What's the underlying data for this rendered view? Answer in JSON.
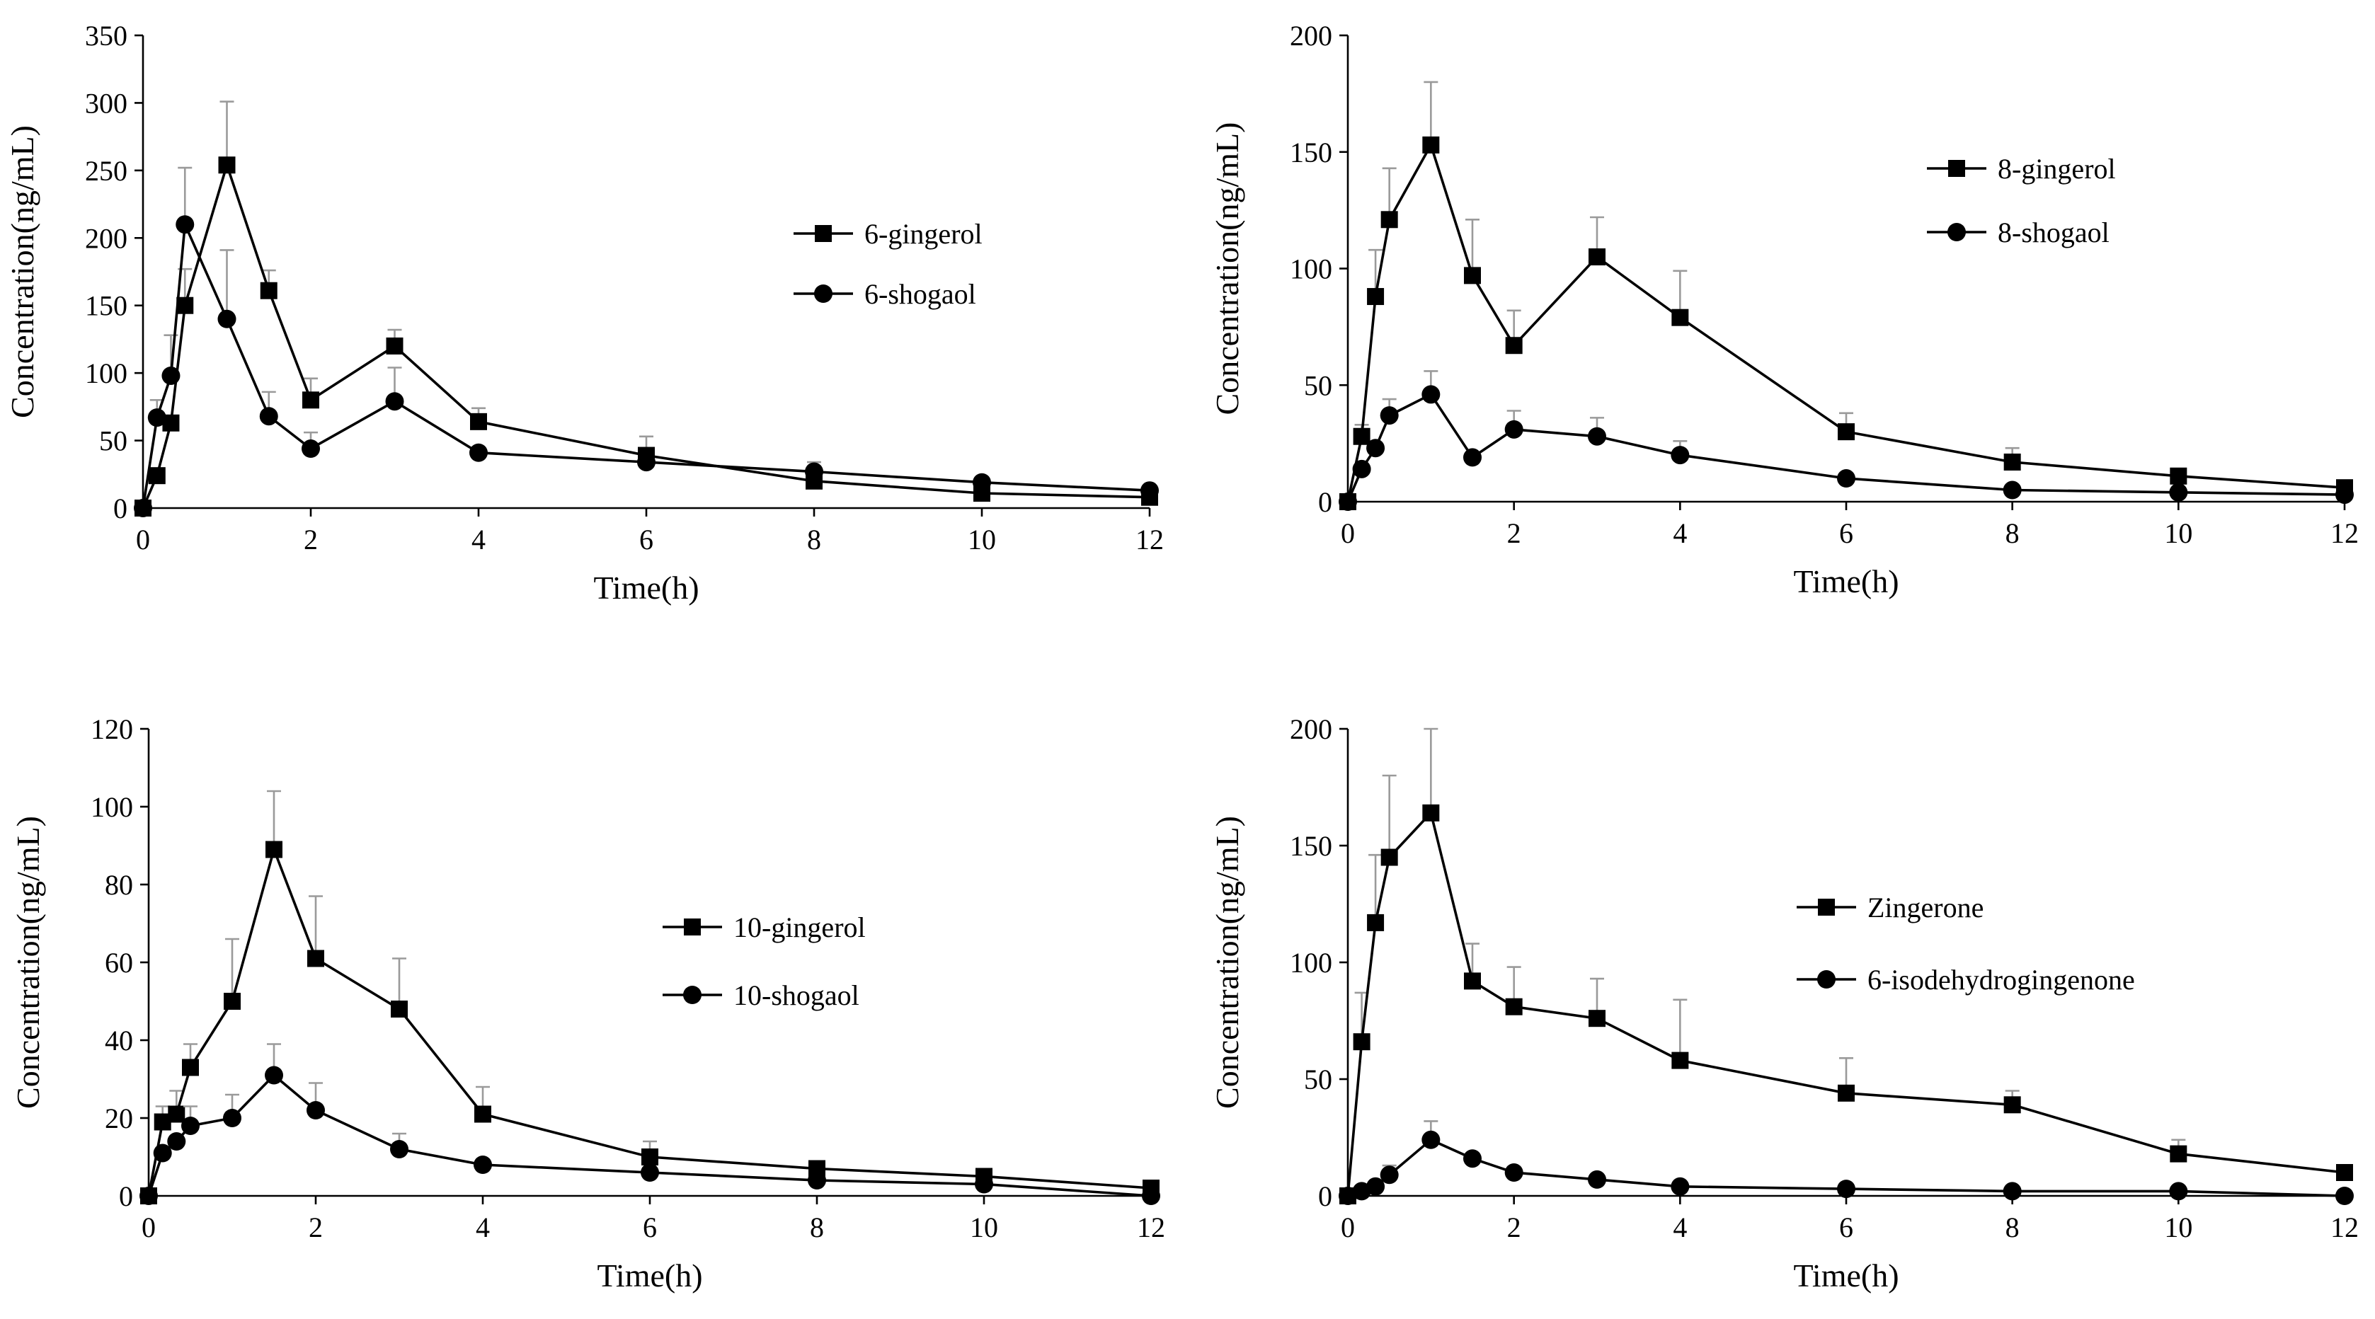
{
  "chart_data": [
    {
      "type": "line",
      "title": "",
      "xlabel": "Time(h)",
      "ylabel": "Concentration(ng/mL)",
      "xlim": [
        0,
        12
      ],
      "ylim": [
        0,
        350
      ],
      "xticks": [
        0,
        2,
        4,
        6,
        8,
        10,
        12
      ],
      "yticks": [
        0,
        50,
        100,
        150,
        200,
        250,
        300,
        350
      ],
      "legend_position": "right-center",
      "x": [
        0,
        0.167,
        0.333,
        0.5,
        1,
        1.5,
        2,
        3,
        4,
        6,
        8,
        10,
        12
      ],
      "series": [
        {
          "name": "6-gingerol",
          "marker": "square",
          "values": [
            0,
            24,
            63,
            150,
            254,
            161,
            80,
            120,
            64,
            39,
            20,
            11,
            8
          ],
          "errors": [
            0,
            0,
            0,
            27,
            47,
            15,
            16,
            12,
            10,
            14,
            0,
            0,
            0
          ]
        },
        {
          "name": "6-shogaol",
          "marker": "circle",
          "values": [
            0,
            67,
            98,
            210,
            140,
            68,
            44,
            79,
            41,
            34,
            27,
            19,
            13
          ],
          "errors": [
            0,
            13,
            30,
            42,
            51,
            18,
            12,
            25,
            0,
            0,
            7,
            0,
            0
          ]
        }
      ]
    },
    {
      "type": "line",
      "title": "",
      "xlabel": "Time(h)",
      "ylabel": "Concentration(ng/mL)",
      "xlim": [
        0,
        12
      ],
      "ylim": [
        0,
        200
      ],
      "xticks": [
        0,
        2,
        4,
        6,
        8,
        10,
        12
      ],
      "yticks": [
        0,
        50,
        100,
        150,
        200
      ],
      "legend_position": "top-right",
      "x": [
        0,
        0.167,
        0.333,
        0.5,
        1,
        1.5,
        2,
        3,
        4,
        6,
        8,
        10,
        12
      ],
      "series": [
        {
          "name": "8-gingerol",
          "marker": "square",
          "values": [
            0,
            28,
            88,
            121,
            153,
            97,
            67,
            105,
            79,
            30,
            17,
            11,
            6
          ],
          "errors": [
            0,
            5,
            20,
            22,
            27,
            24,
            15,
            17,
            20,
            8,
            6,
            3,
            0
          ]
        },
        {
          "name": "8-shogaol",
          "marker": "circle",
          "values": [
            0,
            14,
            23,
            37,
            46,
            19,
            31,
            28,
            20,
            10,
            5,
            4,
            3
          ],
          "errors": [
            0,
            0,
            0,
            7,
            10,
            0,
            8,
            8,
            6,
            0,
            0,
            0,
            0
          ]
        }
      ]
    },
    {
      "type": "line",
      "title": "",
      "xlabel": "Time(h)",
      "ylabel": "Concentration(ng/mL)",
      "xlim": [
        0,
        12
      ],
      "ylim": [
        0,
        120
      ],
      "xticks": [
        0,
        2,
        4,
        6,
        8,
        10,
        12
      ],
      "yticks": [
        0,
        20,
        40,
        60,
        80,
        100,
        120
      ],
      "legend_position": "right-center",
      "x": [
        0,
        0.167,
        0.333,
        0.5,
        1,
        1.5,
        2,
        3,
        4,
        6,
        8,
        10,
        12
      ],
      "series": [
        {
          "name": "10-gingerol",
          "marker": "square",
          "values": [
            0,
            19,
            21,
            33,
            50,
            89,
            61,
            48,
            21,
            10,
            7,
            5,
            2
          ],
          "errors": [
            0,
            4,
            6,
            6,
            16,
            15,
            16,
            13,
            7,
            4,
            0,
            0,
            0
          ]
        },
        {
          "name": "10-shogaol",
          "marker": "circle",
          "values": [
            0,
            11,
            14,
            18,
            20,
            31,
            22,
            12,
            8,
            6,
            4,
            3,
            0
          ],
          "errors": [
            0,
            0,
            0,
            5,
            6,
            8,
            7,
            4,
            0,
            0,
            0,
            0,
            0
          ]
        }
      ]
    },
    {
      "type": "line",
      "title": "",
      "xlabel": "Time(h)",
      "ylabel": "Concentration(ng/mL)",
      "xlim": [
        0,
        12
      ],
      "ylim": [
        0,
        200
      ],
      "xticks": [
        0,
        2,
        4,
        6,
        8,
        10,
        12
      ],
      "yticks": [
        0,
        50,
        100,
        150,
        200
      ],
      "legend_position": "right-center",
      "x": [
        0,
        0.167,
        0.333,
        0.5,
        1,
        1.5,
        2,
        3,
        4,
        6,
        8,
        10,
        12
      ],
      "series": [
        {
          "name": "Zingerone",
          "marker": "square",
          "values": [
            0,
            66,
            117,
            145,
            164,
            92,
            81,
            76,
            58,
            44,
            39,
            18,
            10
          ],
          "errors": [
            0,
            21,
            29,
            35,
            36,
            16,
            17,
            17,
            26,
            15,
            6,
            6,
            0
          ]
        },
        {
          "name": "6-isodehydrogingenone",
          "marker": "circle",
          "values": [
            0,
            2,
            4,
            9,
            24,
            16,
            10,
            7,
            4,
            3,
            2,
            2,
            0
          ],
          "errors": [
            0,
            0,
            0,
            4,
            8,
            0,
            0,
            0,
            0,
            0,
            0,
            0,
            0
          ]
        }
      ]
    }
  ]
}
